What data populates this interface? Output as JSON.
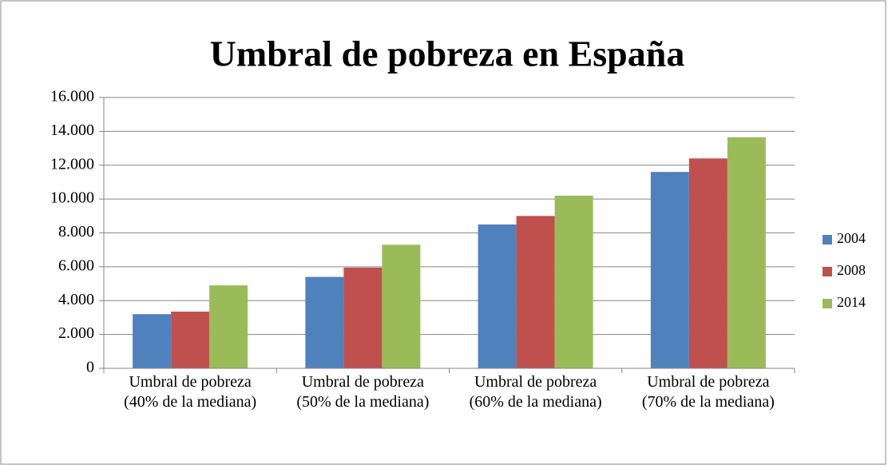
{
  "chart_data": {
    "type": "bar",
    "title": "Umbral  de pobreza en España",
    "categories": [
      "Umbral de pobreza (40% de la mediana)",
      "Umbral de pobreza (50% de la mediana)",
      "Umbral de pobreza (60% de la mediana)",
      "Umbral de pobreza (70% de la mediana)"
    ],
    "series": [
      {
        "name": "2004",
        "color": "#4f81bd",
        "values": [
          3200,
          5400,
          8500,
          11600
        ]
      },
      {
        "name": "2008",
        "color": "#c0504d",
        "values": [
          3350,
          5950,
          9000,
          12400
        ]
      },
      {
        "name": "2014",
        "color": "#9bbb59",
        "values": [
          4900,
          7300,
          10200,
          13650
        ]
      }
    ],
    "ylim": [
      0,
      16000
    ],
    "yticks": [
      0,
      {
        "value": 2000,
        "label": "2.000"
      },
      {
        "value": 4000,
        "label": "4.000"
      },
      {
        "value": 6000,
        "label": "6.000"
      },
      {
        "value": 8000,
        "label": "8.000"
      },
      {
        "value": 10000,
        "label": "10.000"
      },
      {
        "value": 12000,
        "label": "12.000"
      },
      {
        "value": 14000,
        "label": "14.000"
      },
      {
        "value": 16000,
        "label": "16.000"
      }
    ],
    "grid": true,
    "legend": "right"
  }
}
